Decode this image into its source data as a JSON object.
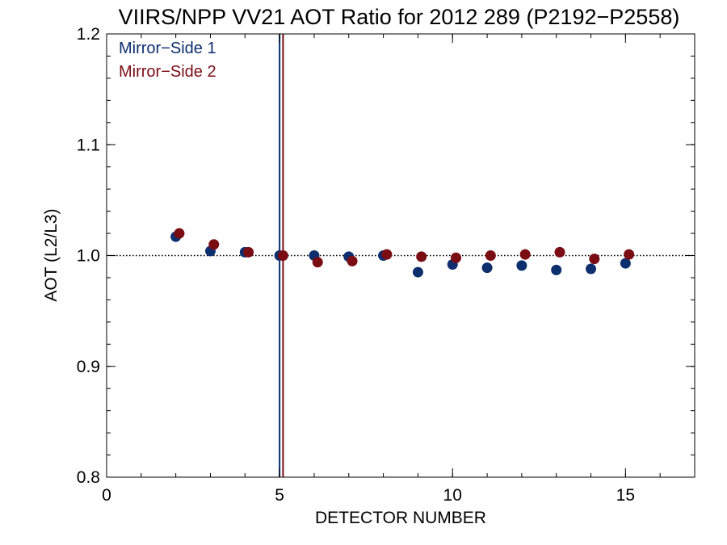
{
  "chart_data": {
    "type": "scatter",
    "title": "VIIRS/NPP VV21 AOT Ratio for 2012 289 (P2192−P2558)",
    "xlabel": "DETECTOR NUMBER",
    "ylabel": "AOT (L2/L3)",
    "xlim": [
      0,
      17
    ],
    "ylim": [
      0.8,
      1.2
    ],
    "x_ticks": [
      0,
      5,
      10,
      15
    ],
    "x_tick_labels": [
      "0",
      "5",
      "10",
      "15"
    ],
    "y_ticks": [
      0.8,
      0.9,
      1.0,
      1.1,
      1.2
    ],
    "y_tick_labels": [
      "0.8",
      "0.9",
      "1.0",
      "1.1",
      "1.2"
    ],
    "x_minor_step": 1,
    "y_minor_step": 0.02,
    "reference_line_y": 1.0,
    "legend_position": "top-left",
    "series": [
      {
        "name": "Mirror−Side 1",
        "color": "#0d2f6e",
        "x": [
          2,
          3,
          4,
          5,
          6,
          7,
          8,
          9,
          10,
          11,
          12,
          13,
          14,
          15
        ],
        "values": [
          1.017,
          1.004,
          1.003,
          1.0,
          1.0,
          0.999,
          1.0,
          0.985,
          0.992,
          0.989,
          0.991,
          0.987,
          0.988,
          0.993
        ],
        "vline_x": 5.0
      },
      {
        "name": "Mirror−Side 2",
        "color": "#7a0c14",
        "x": [
          2.1,
          3.1,
          4.1,
          5.1,
          6.1,
          7.1,
          8.1,
          9.1,
          10.1,
          11.1,
          12.1,
          13.1,
          14.1,
          15.1
        ],
        "values": [
          1.02,
          1.01,
          1.003,
          1.0,
          0.994,
          0.995,
          1.001,
          0.999,
          0.998,
          1.0,
          1.001,
          1.003,
          0.997,
          1.001
        ],
        "vline_x": 5.1
      }
    ]
  }
}
